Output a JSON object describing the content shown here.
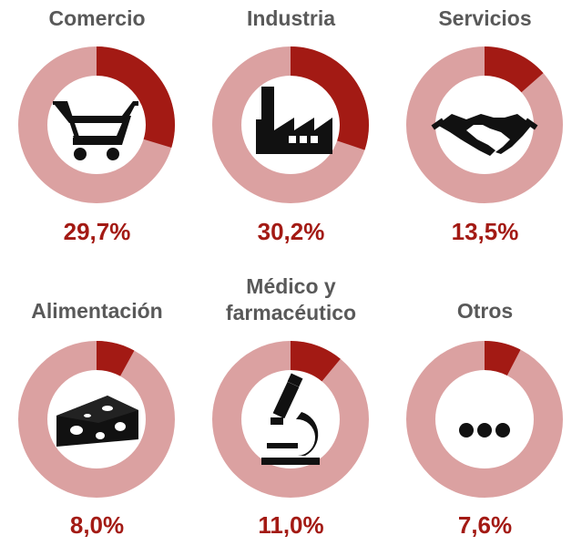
{
  "chart_data": {
    "type": "donut-grid",
    "colors": {
      "highlight": "#a31a14",
      "remainder": "#dba1a1",
      "icon": "#111111"
    },
    "items": [
      {
        "category": "Comercio",
        "value": 29.7,
        "label": "29,7%",
        "icon": "shopping-cart-icon"
      },
      {
        "category": "Industria",
        "value": 30.2,
        "label": "30,2%",
        "icon": "factory-icon"
      },
      {
        "category": "Servicios",
        "value": 13.5,
        "label": "13,5%",
        "icon": "handshake-icon"
      },
      {
        "category": "Alimentación",
        "value": 8.0,
        "label": "8,0%",
        "icon": "cheese-icon"
      },
      {
        "category": "Médico y farmacéutico",
        "value": 11.0,
        "label": "11,0%",
        "icon": "microscope-icon"
      },
      {
        "category": "Otros",
        "value": 7.6,
        "label": "7,6%",
        "icon": "ellipsis-icon"
      }
    ]
  }
}
